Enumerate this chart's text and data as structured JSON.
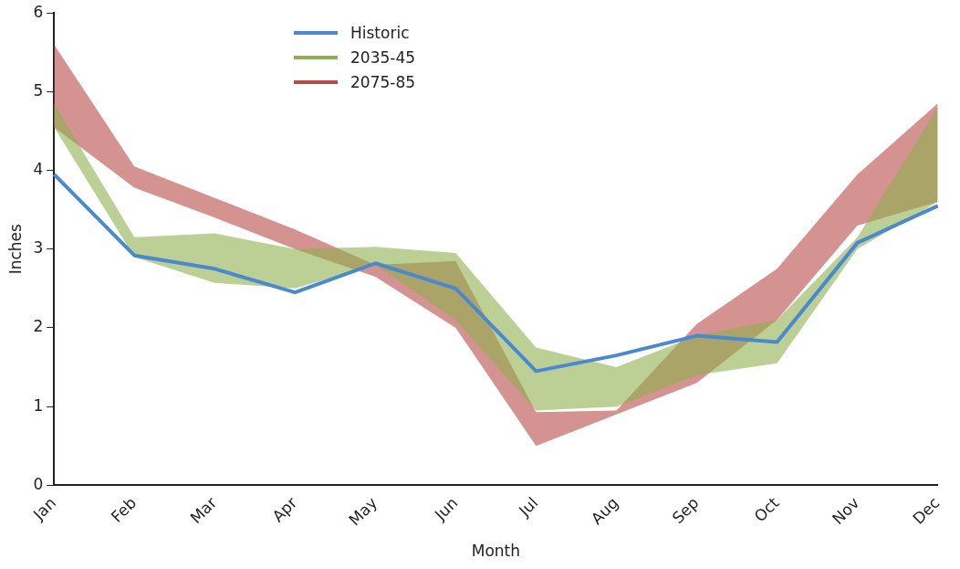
{
  "chart_data": {
    "type": "line",
    "xlabel": "Month",
    "ylabel": "Inches",
    "categories": [
      "Jan",
      "Feb",
      "Mar",
      "Apr",
      "May",
      "Jun",
      "Jul",
      "Aug",
      "Sep",
      "Oct",
      "Nov",
      "Dec"
    ],
    "series": [
      {
        "name": "Historic",
        "color": "#4a89cf",
        "values": [
          3.95,
          2.92,
          2.75,
          2.45,
          2.82,
          2.5,
          1.45,
          1.65,
          1.9,
          1.82,
          3.08,
          3.55
        ]
      },
      {
        "name": "2035-45",
        "type": "area",
        "color": "#8fb04f",
        "values": [
          null,
          null,
          null,
          null,
          null,
          null,
          null,
          null,
          null,
          null,
          null,
          null
        ],
        "lower": [
          4.55,
          2.9,
          2.57,
          2.5,
          2.8,
          2.1,
          0.95,
          1.0,
          1.4,
          1.55,
          3.0,
          3.6
        ],
        "upper": [
          4.85,
          3.15,
          3.2,
          3.0,
          3.03,
          2.95,
          1.75,
          1.5,
          1.9,
          2.1,
          3.15,
          4.8
        ]
      },
      {
        "name": "2075-85",
        "type": "area",
        "color": "#b84a48",
        "values": [
          null,
          null,
          null,
          null,
          null,
          null,
          null,
          null,
          null,
          null,
          null,
          null
        ],
        "lower": [
          4.55,
          3.78,
          3.4,
          3.0,
          2.65,
          2.0,
          0.5,
          0.9,
          1.3,
          2.1,
          3.3,
          3.6
        ],
        "upper": [
          5.6,
          4.05,
          3.65,
          3.25,
          2.8,
          2.85,
          0.93,
          0.95,
          2.05,
          2.75,
          3.95,
          4.85
        ]
      }
    ],
    "ylim": [
      0,
      6
    ],
    "yticks": [
      0,
      1,
      2,
      3,
      4,
      5,
      6
    ],
    "grid": false,
    "legend": "top left",
    "marker": "none",
    "line_style": "solid"
  }
}
